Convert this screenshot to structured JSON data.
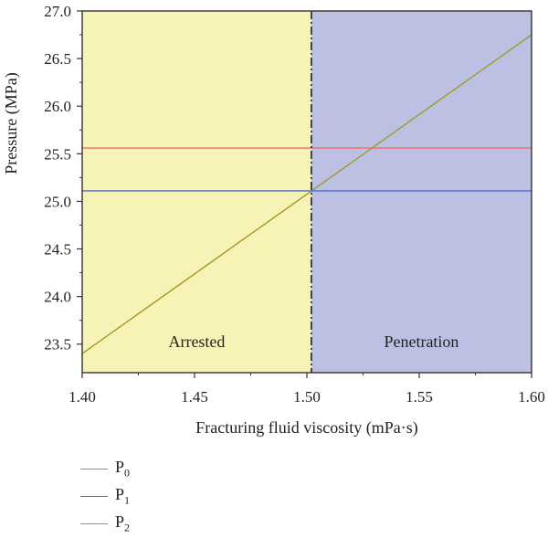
{
  "chart_data": {
    "type": "line",
    "xlabel": "Fracturing fluid viscosity (mPa·s)",
    "ylabel": "Pressure (MPa)",
    "xlim": [
      1.4,
      1.6
    ],
    "ylim": [
      23.2,
      27.0
    ],
    "x_ticks": [
      "1.40",
      "1.45",
      "1.50",
      "1.55",
      "1.60"
    ],
    "y_ticks": [
      "23.5",
      "24.0",
      "24.5",
      "25.0",
      "25.5",
      "26.0",
      "26.5",
      "27.0"
    ],
    "divider_x": 1.502,
    "regions": [
      {
        "label": "Arrested",
        "x_range": [
          1.4,
          1.502
        ],
        "color": "#f7f3b6"
      },
      {
        "label": "Penetration",
        "x_range": [
          1.502,
          1.6
        ],
        "color": "#bcc0e3"
      }
    ],
    "series": [
      {
        "name": "P",
        "subscript": "0",
        "color": "#a09a24",
        "x": [
          1.4,
          1.6
        ],
        "y": [
          23.4,
          26.75
        ]
      },
      {
        "name": "P",
        "subscript": "1",
        "color": "#5567c4",
        "x": [
          1.4,
          1.6
        ],
        "y": [
          25.11,
          25.11
        ]
      },
      {
        "name": "P",
        "subscript": "2",
        "color": "#e8706a",
        "x": [
          1.4,
          1.6
        ],
        "y": [
          25.56,
          25.56
        ]
      }
    ]
  }
}
